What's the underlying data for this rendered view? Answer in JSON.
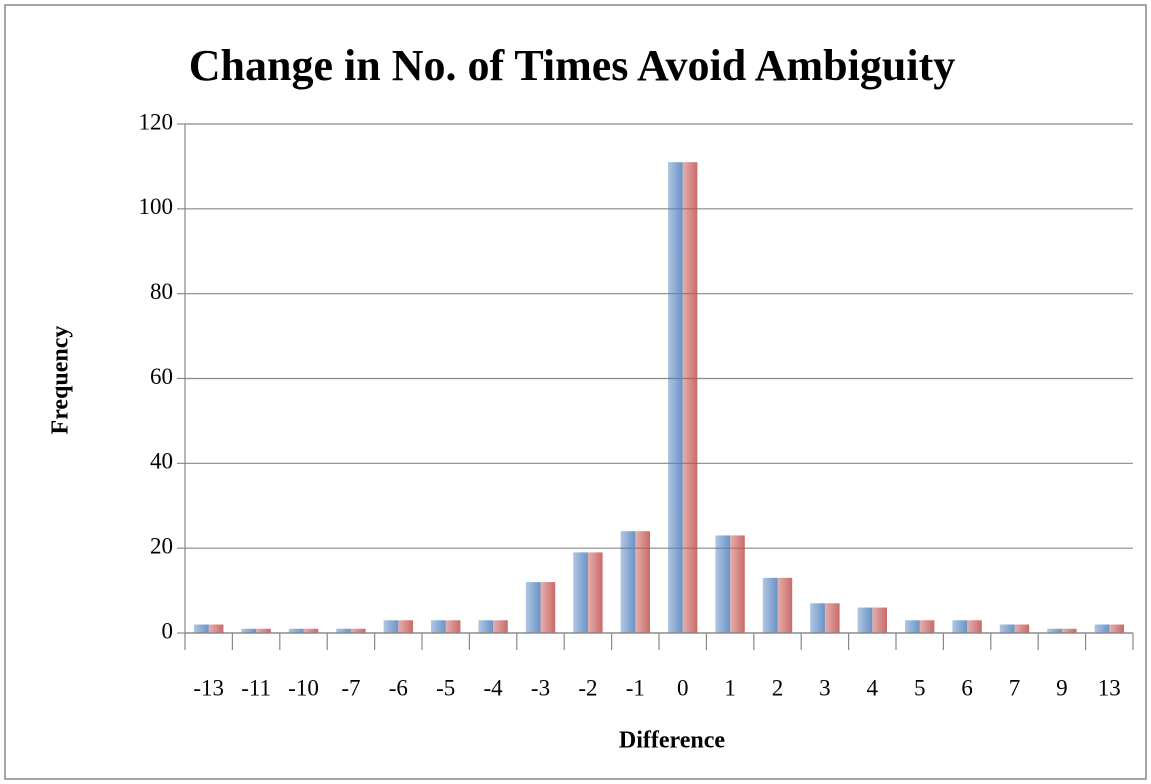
{
  "chart_data": {
    "type": "bar",
    "title": "Change in No. of Times Avoid Ambiguity",
    "x_label": "Difference",
    "y_label": "Frequency",
    "categories": [
      "-13",
      "-11",
      "-10",
      "-7",
      "-6",
      "-5",
      "-4",
      "-3",
      "-2",
      "-1",
      "0",
      "1",
      "2",
      "3",
      "4",
      "5",
      "6",
      "7",
      "9",
      "13"
    ],
    "series": [
      {
        "color": "#4f81bd",
        "values": [
          2,
          1,
          1,
          1,
          3,
          3,
          3,
          12,
          19,
          24,
          111,
          23,
          13,
          7,
          6,
          3,
          3,
          2,
          1,
          2
        ]
      },
      {
        "color": "#c0504d",
        "values": [
          2,
          1,
          1,
          1,
          3,
          3,
          3,
          12,
          19,
          24,
          111,
          23,
          13,
          7,
          6,
          3,
          3,
          2,
          1,
          2
        ]
      }
    ],
    "ylim": [
      0,
      120
    ],
    "yticks": [
      0,
      20,
      40,
      60,
      80,
      100,
      120
    ],
    "grid": true
  }
}
